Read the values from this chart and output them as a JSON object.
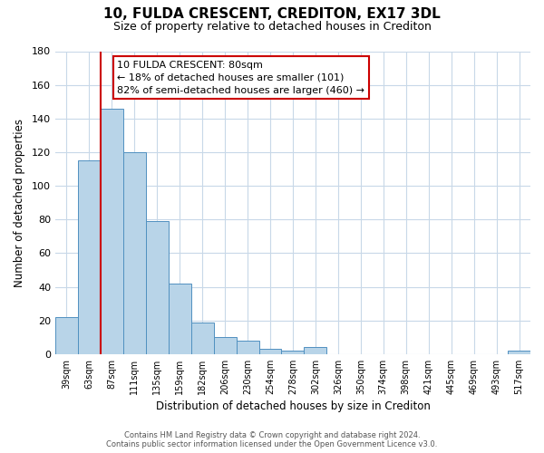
{
  "title": "10, FULDA CRESCENT, CREDITON, EX17 3DL",
  "subtitle": "Size of property relative to detached houses in Crediton",
  "xlabel": "Distribution of detached houses by size in Crediton",
  "ylabel": "Number of detached properties",
  "bar_labels": [
    "39sqm",
    "63sqm",
    "87sqm",
    "111sqm",
    "135sqm",
    "159sqm",
    "182sqm",
    "206sqm",
    "230sqm",
    "254sqm",
    "278sqm",
    "302sqm",
    "326sqm",
    "350sqm",
    "374sqm",
    "398sqm",
    "421sqm",
    "445sqm",
    "469sqm",
    "493sqm",
    "517sqm"
  ],
  "bar_values": [
    22,
    115,
    146,
    120,
    79,
    42,
    19,
    10,
    8,
    3,
    2,
    4,
    0,
    0,
    0,
    0,
    0,
    0,
    0,
    0,
    2
  ],
  "bar_color": "#b8d4e8",
  "bar_edge_color": "#5090c0",
  "property_line_color": "#cc0000",
  "property_line_index": 2,
  "annotation_title": "10 FULDA CRESCENT: 80sqm",
  "annotation_line1": "← 18% of detached houses are smaller (101)",
  "annotation_line2": "82% of semi-detached houses are larger (460) →",
  "annotation_box_color": "#ffffff",
  "annotation_box_edge": "#cc0000",
  "ylim": [
    0,
    180
  ],
  "yticks": [
    0,
    20,
    40,
    60,
    80,
    100,
    120,
    140,
    160,
    180
  ],
  "footer_line1": "Contains HM Land Registry data © Crown copyright and database right 2024.",
  "footer_line2": "Contains public sector information licensed under the Open Government Licence v3.0.",
  "bg_color": "#ffffff",
  "grid_color": "#c8d8e8",
  "title_fontsize": 11,
  "subtitle_fontsize": 9
}
